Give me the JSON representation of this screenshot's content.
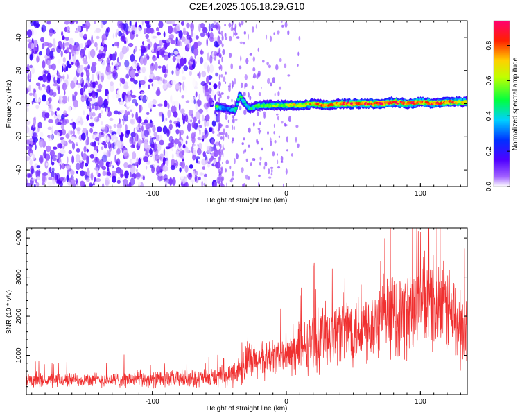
{
  "figure_title": "C2E4.2025.105.18.29.G10",
  "chart_data": [
    {
      "type": "heatmap",
      "title": "C2E4.2025.105.18.29.G10",
      "xlabel": "Height of straight line (km)",
      "ylabel": "Frequency (Hz)",
      "xlim": [
        -194,
        135
      ],
      "ylim": [
        -50,
        50
      ],
      "x_ticks": [
        -100,
        0,
        100
      ],
      "x_tick_labels": [
        "-100",
        "0",
        "100"
      ],
      "y_ticks": [
        -40,
        -20,
        0,
        20,
        40
      ],
      "y_tick_labels": [
        "-40",
        "-20",
        "0",
        "20",
        "40"
      ],
      "colorbar": {
        "label": "Normalized spectral amplitude",
        "range": [
          0,
          0.94
        ],
        "ticks": [
          0.0,
          0.2,
          0.4,
          0.6,
          0.8
        ],
        "tick_labels": [
          "0.0",
          "0.2",
          "0.4",
          "0.6",
          "0.8"
        ],
        "colormap": [
          "#ffffff",
          "#7a00ff",
          "#0000ff",
          "#00ffff",
          "#00ff00",
          "#ffff00",
          "#ff0000",
          "#ff0080"
        ]
      },
      "noise_region": {
        "x_range": [
          -194,
          -50
        ],
        "y_range": [
          -50,
          50
        ],
        "level_range": [
          0.0,
          0.12
        ]
      },
      "signal_track": {
        "points": [
          {
            "x": -52,
            "y": -2,
            "level": 0.55
          },
          {
            "x": -45,
            "y": -3,
            "level": 0.3
          },
          {
            "x": -38,
            "y": -4,
            "level": 0.45
          },
          {
            "x": -35,
            "y": 5,
            "level": 0.5
          },
          {
            "x": -28,
            "y": -3,
            "level": 0.45
          },
          {
            "x": -20,
            "y": -1,
            "level": 0.55
          },
          {
            "x": -10,
            "y": -1,
            "level": 0.6
          },
          {
            "x": 0,
            "y": -1,
            "level": 0.65
          },
          {
            "x": 10,
            "y": -1,
            "level": 0.7
          },
          {
            "x": 20,
            "y": 0,
            "level": 0.75
          },
          {
            "x": 30,
            "y": -1,
            "level": 0.8
          },
          {
            "x": 40,
            "y": 0,
            "level": 0.85
          },
          {
            "x": 50,
            "y": 0,
            "level": 0.9
          },
          {
            "x": 60,
            "y": 0,
            "level": 0.92
          },
          {
            "x": 70,
            "y": 0,
            "level": 0.94
          },
          {
            "x": 80,
            "y": 1,
            "level": 0.9
          },
          {
            "x": 90,
            "y": 0,
            "level": 0.88
          },
          {
            "x": 100,
            "y": 1,
            "level": 0.85
          },
          {
            "x": 110,
            "y": 0,
            "level": 0.86
          },
          {
            "x": 120,
            "y": 1,
            "level": 0.84
          },
          {
            "x": 130,
            "y": 1,
            "level": 0.8
          },
          {
            "x": 135,
            "y": 1,
            "level": 0.78
          }
        ]
      }
    },
    {
      "type": "line",
      "xlabel": "Height of straight line (km)",
      "ylabel": "SNR (10 * v/v)",
      "xlim": [
        -194,
        135
      ],
      "ylim": [
        0,
        4250
      ],
      "x_ticks": [
        -100,
        0,
        100
      ],
      "x_tick_labels": [
        "-100",
        "0",
        "100"
      ],
      "y_ticks": [
        1000,
        2000,
        3000,
        4000
      ],
      "y_tick_labels": [
        "1000",
        "2000",
        "3000",
        "4000"
      ],
      "line_color": "#f03030",
      "envelope": {
        "x": [
          -194,
          -150,
          -100,
          -60,
          -45,
          -35,
          -30,
          -20,
          -10,
          0,
          10,
          20,
          30,
          40,
          50,
          60,
          70,
          80,
          90,
          100,
          110,
          120,
          125,
          130,
          135
        ],
        "mean": [
          350,
          370,
          390,
          420,
          460,
          620,
          800,
          850,
          950,
          1000,
          1100,
          1350,
          1500,
          1650,
          1700,
          1800,
          1900,
          2000,
          2050,
          2250,
          2300,
          2200,
          1900,
          1700,
          1600
        ],
        "spread": [
          220,
          220,
          250,
          280,
          320,
          450,
          700,
          550,
          550,
          600,
          800,
          900,
          1000,
          1050,
          1100,
          1150,
          1200,
          1250,
          1300,
          1400,
          1450,
          1450,
          1350,
          1300,
          1200
        ]
      }
    }
  ]
}
